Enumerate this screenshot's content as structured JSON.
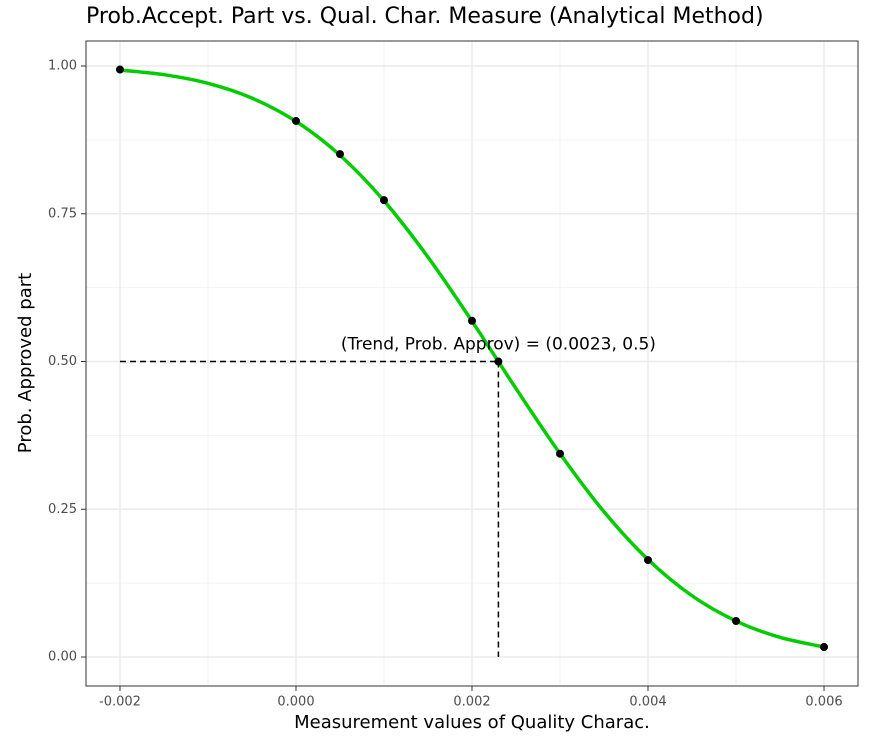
{
  "chart_data": {
    "type": "line",
    "title": "Prob.Accept. Part vs. Qual. Char. Measure (Analytical Method)",
    "x_label": "Measurement values of Quality Charac.",
    "y_label": "Prob. Approved part",
    "curve": {
      "color": "#00cc00",
      "x": [
        -0.002,
        -0.0015,
        -0.001,
        -0.0005,
        0,
        0.0005,
        0.001,
        0.0015,
        0.002,
        0.0025,
        0.003,
        0.0035,
        0.004,
        0.0045,
        0.005,
        0.0055,
        0.006
      ],
      "values": [
        0.9931,
        0.9853,
        0.9707,
        0.9457,
        0.9063,
        0.849,
        0.7719,
        0.6766,
        0.5682,
        0.4542,
        0.3442,
        0.2458,
        0.165,
        0.1037,
        0.0609,
        0.0333,
        0.017
      ]
    },
    "points": {
      "color": "#000000",
      "x": [
        -0.002,
        0,
        0.0005,
        0.001,
        0.002,
        0.0023,
        0.003,
        0.004,
        0.005,
        0.006
      ],
      "values": [
        0.994,
        0.907,
        0.851,
        0.773,
        0.569,
        0.5,
        0.344,
        0.164,
        0.061,
        0.017
      ]
    },
    "reference": {
      "x": 0.0023,
      "y": 0.5
    },
    "annotation": "(Trend, Prob. Approv) = (0.0023, 0.5)",
    "xlim": [
      -0.002386,
      0.006386
    ],
    "ylim": [
      -0.049,
      1.0423
    ],
    "xticks": [
      -0.002,
      {
        "value": 0,
        "label": "0.000"
      },
      0.002,
      0.004,
      0.006
    ],
    "yticks": [
      {
        "value": 0,
        "label": "0.00"
      },
      {
        "value": 0.25,
        "label": "0.25"
      },
      {
        "value": 0.5,
        "label": "0.50"
      },
      {
        "value": 0.75,
        "label": "0.75"
      },
      {
        "value": 1,
        "label": "1.00"
      }
    ],
    "x_minor_grid": [
      -0.001,
      0.001,
      0.003,
      0.005
    ],
    "y_minor_grid": [
      0.125,
      0.375,
      0.625,
      0.875
    ],
    "grid": true
  }
}
